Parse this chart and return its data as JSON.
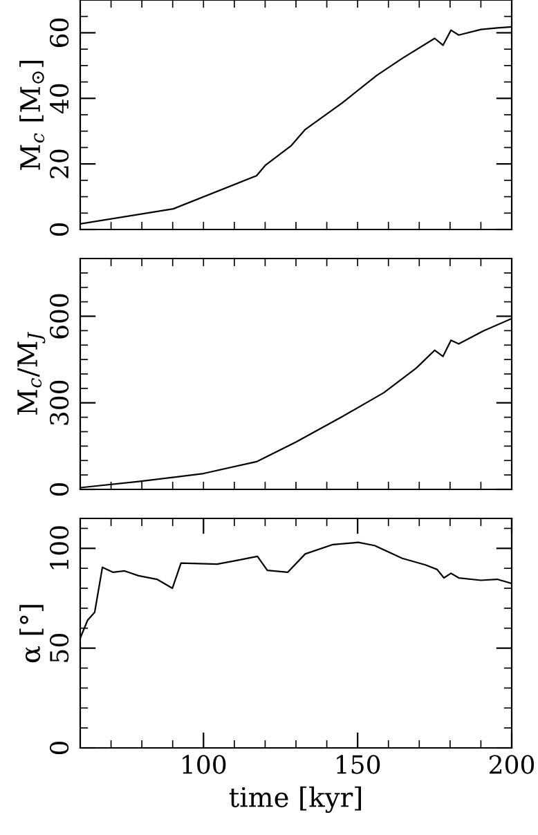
{
  "chart_data": [
    {
      "type": "line",
      "ylabel": "M$_{c}$ [M$_{⊙}$]",
      "tick_labels": "y",
      "color": "#000000",
      "x": [
        60,
        90.2,
        117.2,
        120.2,
        128.5,
        133,
        145,
        156.2,
        164.5,
        175,
        177.7,
        180.3,
        182.8,
        190,
        195.3,
        200
      ],
      "values": [
        1.7,
        6.3,
        16.4,
        19.7,
        25.6,
        30.5,
        38.6,
        47,
        52.2,
        58.3,
        56.2,
        60.8,
        59.3,
        61,
        61.5,
        61.8
      ],
      "xlim": [
        60,
        200
      ],
      "ylim": [
        0,
        70
      ],
      "xticks": [
        {
          "value": 70,
          "label": null
        },
        {
          "value": 80,
          "label": null
        },
        {
          "value": 90,
          "label": null
        },
        {
          "value": 100,
          "label": null
        },
        {
          "value": 110,
          "label": null
        },
        {
          "value": 120,
          "label": null
        },
        {
          "value": 130,
          "label": null
        },
        {
          "value": 140,
          "label": null
        },
        {
          "value": 150,
          "label": null
        },
        {
          "value": 160,
          "label": null
        },
        {
          "value": 170,
          "label": null
        },
        {
          "value": 180,
          "label": null
        },
        {
          "value": 190,
          "label": null
        }
      ],
      "yticks": [
        0,
        {
          "value": 5,
          "label": null
        },
        {
          "value": 10,
          "label": null
        },
        {
          "value": 15,
          "label": null
        },
        20,
        {
          "value": 25,
          "label": null
        },
        {
          "value": 30,
          "label": null
        },
        {
          "value": 35,
          "label": null
        },
        40,
        {
          "value": 45,
          "label": null
        },
        {
          "value": 50,
          "label": null
        },
        {
          "value": 55,
          "label": null
        },
        60,
        {
          "value": 65,
          "label": null
        }
      ]
    },
    {
      "type": "line",
      "ylabel": "M$_{c}$/M$_{J}$",
      "tick_labels": "y",
      "color": "#000000",
      "x": [
        60,
        78.9,
        100,
        117.2,
        130,
        145,
        158.5,
        169,
        175,
        177.7,
        180.3,
        182.8,
        190.8,
        200
      ],
      "values": [
        6,
        27,
        55,
        96,
        164,
        252,
        335,
        420,
        482,
        461,
        517,
        504,
        549,
        592
      ],
      "xlim": [
        60,
        200
      ],
      "ylim": [
        0,
        800
      ],
      "xticks": [
        {
          "value": 70,
          "label": null
        },
        {
          "value": 80,
          "label": null
        },
        {
          "value": 90,
          "label": null
        },
        {
          "value": 100,
          "label": null
        },
        {
          "value": 110,
          "label": null
        },
        {
          "value": 120,
          "label": null
        },
        {
          "value": 130,
          "label": null
        },
        {
          "value": 140,
          "label": null
        },
        {
          "value": 150,
          "label": null
        },
        {
          "value": 160,
          "label": null
        },
        {
          "value": 170,
          "label": null
        },
        {
          "value": 180,
          "label": null
        },
        {
          "value": 190,
          "label": null
        }
      ],
      "yticks": [
        0,
        {
          "value": 50,
          "label": null
        },
        {
          "value": 100,
          "label": null
        },
        {
          "value": 150,
          "label": null
        },
        {
          "value": 200,
          "label": null
        },
        {
          "value": 250,
          "label": null
        },
        300,
        {
          "value": 350,
          "label": null
        },
        {
          "value": 400,
          "label": null
        },
        {
          "value": 450,
          "label": null
        },
        {
          "value": 500,
          "label": null
        },
        {
          "value": 550,
          "label": null
        },
        600,
        {
          "value": 650,
          "label": null
        },
        {
          "value": 700,
          "label": null
        },
        {
          "value": 750,
          "label": null
        }
      ]
    },
    {
      "type": "line",
      "xlabel": "time [kyr]",
      "ylabel": "α [°]",
      "color": "#000000",
      "x": [
        60,
        62.4,
        64.7,
        67.2,
        70.7,
        74.4,
        78.9,
        84.9,
        89.9,
        92.7,
        104.4,
        110.4,
        117.5,
        120.7,
        127.3,
        133,
        142,
        150.2,
        155.5,
        164.5,
        172,
        175.8,
        178,
        180.3,
        182.8,
        190,
        195.3,
        200
      ],
      "values": [
        55,
        64,
        68,
        90.5,
        88,
        88.7,
        86.3,
        84.5,
        80,
        92.6,
        92.1,
        93.8,
        96,
        89,
        88,
        97.2,
        101.9,
        103,
        101.4,
        95,
        91.7,
        89.4,
        85.2,
        87.5,
        85.2,
        84,
        84.5,
        82.4
      ],
      "xlim": [
        60,
        200
      ],
      "ylim": [
        0,
        115
      ],
      "xticks": [
        {
          "value": 70,
          "label": null
        },
        {
          "value": 80,
          "label": null
        },
        {
          "value": 90,
          "label": null
        },
        100,
        {
          "value": 110,
          "label": null
        },
        {
          "value": 120,
          "label": null
        },
        {
          "value": 130,
          "label": null
        },
        {
          "value": 140,
          "label": null
        },
        150,
        {
          "value": 160,
          "label": null
        },
        {
          "value": 170,
          "label": null
        },
        {
          "value": 180,
          "label": null
        },
        {
          "value": 190,
          "label": null
        },
        200
      ],
      "yticks": [
        0,
        {
          "value": 10,
          "label": null
        },
        {
          "value": 20,
          "label": null
        },
        {
          "value": 30,
          "label": null
        },
        {
          "value": 40,
          "label": null
        },
        50,
        {
          "value": 60,
          "label": null
        },
        {
          "value": 70,
          "label": null
        },
        {
          "value": 80,
          "label": null
        },
        {
          "value": 90,
          "label": null
        },
        100,
        {
          "value": 110,
          "label": null
        }
      ]
    }
  ]
}
